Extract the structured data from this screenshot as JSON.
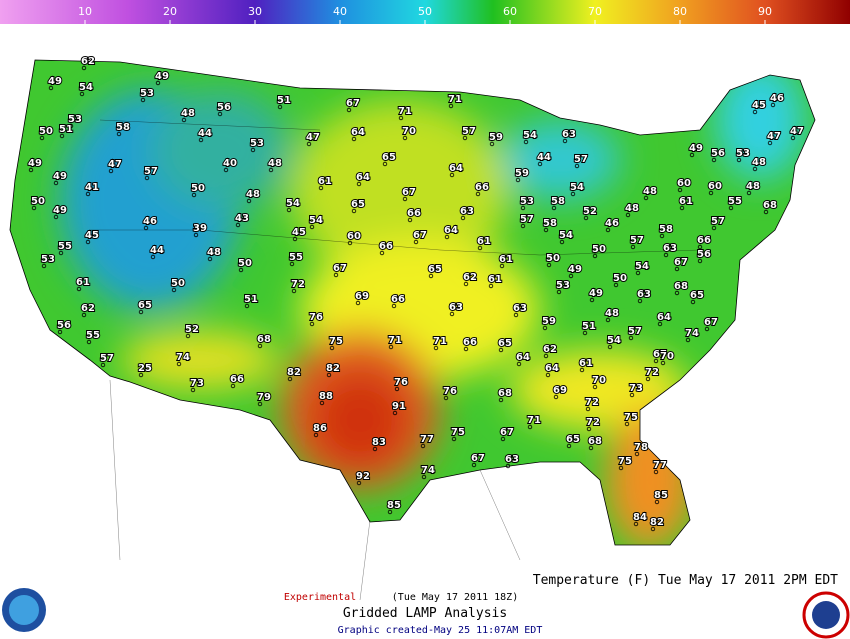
{
  "colorbar": {
    "range": [
      0,
      100
    ],
    "ticks": [
      10,
      20,
      30,
      40,
      50,
      60,
      70,
      80,
      90
    ]
  },
  "stations": {
    "values": [
      62,
      49,
      54,
      49,
      53,
      48,
      56,
      51,
      67,
      71,
      71,
      46,
      45,
      53,
      50,
      51,
      58,
      44,
      53,
      47,
      64,
      70,
      57,
      59,
      54,
      63,
      47,
      47,
      49,
      47,
      57,
      40,
      48,
      65,
      64,
      44,
      57,
      49,
      56,
      53,
      48,
      49,
      41,
      50,
      61,
      64,
      66,
      59,
      54,
      48,
      60,
      60,
      48,
      50,
      49,
      48,
      54,
      67,
      65,
      53,
      58,
      52,
      46,
      48,
      61,
      55,
      68,
      46,
      43,
      54,
      66,
      63,
      57,
      58,
      57,
      45,
      39,
      45,
      60,
      67,
      64,
      61,
      54,
      57,
      58,
      66,
      55,
      44,
      48,
      66,
      61,
      50,
      63,
      56,
      53,
      50,
      55,
      67,
      65,
      62,
      61,
      50,
      49,
      54,
      67,
      50,
      72,
      61,
      69,
      66,
      63,
      53,
      49,
      50,
      63,
      68,
      65,
      51,
      62,
      65,
      63,
      48,
      76,
      59,
      51,
      64,
      74,
      67,
      56,
      52,
      57,
      55,
      68,
      75,
      71,
      71,
      66,
      65,
      62,
      54,
      67,
      70,
      57,
      74,
      64,
      61,
      82,
      64,
      70,
      72,
      25,
      73,
      66,
      82,
      76,
      69,
      73,
      68,
      76,
      79,
      88,
      72,
      91,
      71,
      72,
      75,
      86,
      83,
      77,
      75,
      67,
      65,
      68,
      78,
      63,
      67,
      74,
      75,
      77,
      92,
      85,
      85,
      84,
      82
    ]
  },
  "footer": {
    "title": "Temperature (F) Tue May 17 2011  2PM EDT",
    "experimental": "Experimental",
    "run": "(Tue May 17 2011 18Z)",
    "product": "Gridded LAMP Analysis",
    "created": "Graphic created-May 25 11:07AM EDT"
  }
}
